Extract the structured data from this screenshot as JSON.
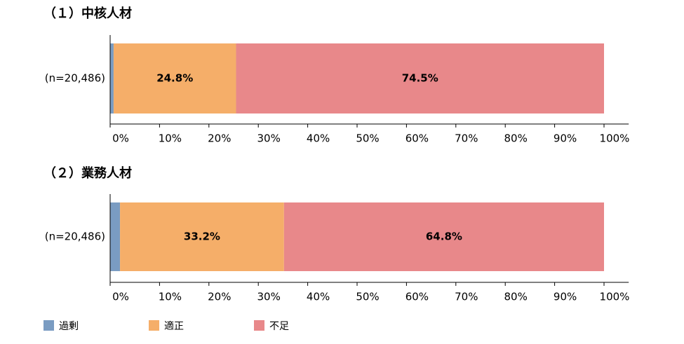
{
  "chart_data": [
    {
      "type": "stacked-bar",
      "title": "（１）中核人材",
      "categories": [
        "(n=20,486)"
      ],
      "series": [
        {
          "name": "過剰",
          "color": "#7a9cc2",
          "values": [
            0.7
          ]
        },
        {
          "name": "適正",
          "color": "#f5ae69",
          "values": [
            24.8
          ],
          "value_labels": [
            "24.8%"
          ]
        },
        {
          "name": "不足",
          "color": "#e8888a",
          "values": [
            74.5
          ],
          "value_labels": [
            "74.5%"
          ]
        }
      ],
      "xlim": [
        0,
        105
      ],
      "xticks": [
        {
          "value": 0,
          "label": "0%"
        },
        {
          "value": 10,
          "label": "10%"
        },
        {
          "value": 20,
          "label": "20%"
        },
        {
          "value": 30,
          "label": "30%"
        },
        {
          "value": 40,
          "label": "40%"
        },
        {
          "value": 50,
          "label": "50%"
        },
        {
          "value": 60,
          "label": "60%"
        },
        {
          "value": 70,
          "label": "70%"
        },
        {
          "value": 80,
          "label": "80%"
        },
        {
          "value": 90,
          "label": "90%"
        },
        {
          "value": 100,
          "label": "100%"
        }
      ]
    },
    {
      "type": "stacked-bar",
      "title": "（２）業務人材",
      "categories": [
        "(n=20,486)"
      ],
      "series": [
        {
          "name": "過剰",
          "color": "#7a9cc2",
          "values": [
            2.0
          ]
        },
        {
          "name": "適正",
          "color": "#f5ae69",
          "values": [
            33.2
          ],
          "value_labels": [
            "33.2%"
          ]
        },
        {
          "name": "不足",
          "color": "#e8888a",
          "values": [
            64.8
          ],
          "value_labels": [
            "64.8%"
          ]
        }
      ],
      "xlim": [
        0,
        105
      ],
      "xticks": [
        {
          "value": 0,
          "label": "0%"
        },
        {
          "value": 10,
          "label": "10%"
        },
        {
          "value": 20,
          "label": "20%"
        },
        {
          "value": 30,
          "label": "30%"
        },
        {
          "value": 40,
          "label": "40%"
        },
        {
          "value": 50,
          "label": "50%"
        },
        {
          "value": 60,
          "label": "60%"
        },
        {
          "value": 70,
          "label": "70%"
        },
        {
          "value": 80,
          "label": "80%"
        },
        {
          "value": 90,
          "label": "90%"
        },
        {
          "value": 100,
          "label": "100%"
        }
      ]
    }
  ]
}
